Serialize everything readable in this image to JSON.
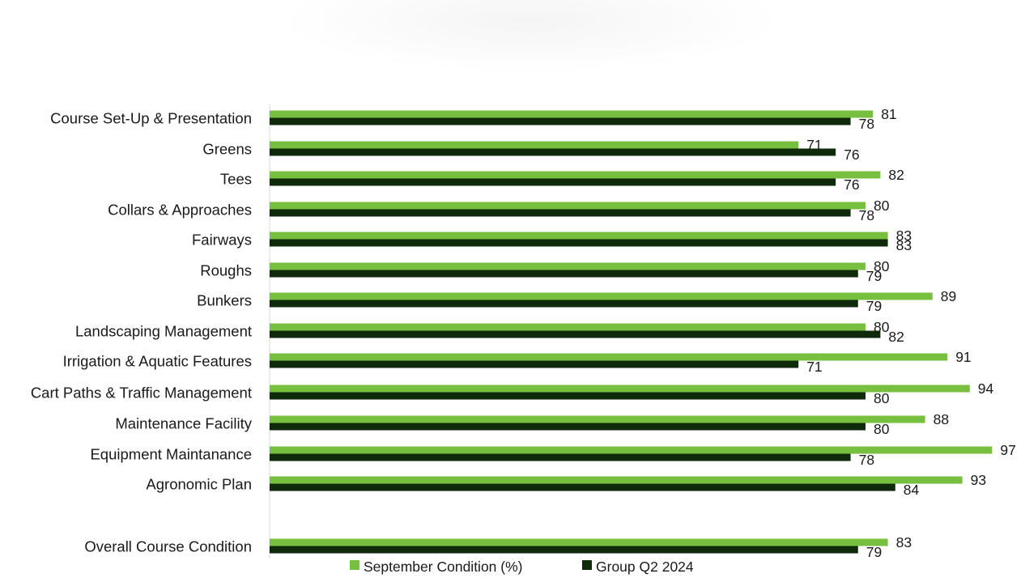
{
  "chart_data": {
    "type": "bar",
    "orientation": "horizontal",
    "categories": [
      "Course Set-Up & Presentation",
      "Greens",
      "Tees",
      "Collars & Approaches",
      "Fairways",
      "Roughs",
      "Bunkers",
      "Landscaping Management",
      "Irrigation & Aquatic Features",
      "Cart Paths & Traffic Management",
      "Maintenance Facility",
      "Equipment Maintanance",
      "Agronomic Plan",
      "Overall Course Condition"
    ],
    "series": [
      {
        "name": "September Condition (%)",
        "color": "#76bf3f",
        "values": [
          81,
          71,
          82,
          80,
          83,
          80,
          89,
          80,
          91,
          94,
          88,
          97,
          93,
          83
        ]
      },
      {
        "name": "Group Q2 2024",
        "color": "#0f2a0b",
        "values": [
          78,
          76,
          76,
          78,
          83,
          79,
          79,
          82,
          71,
          80,
          80,
          78,
          84,
          79
        ]
      }
    ],
    "xlim": [
      0,
      100
    ],
    "grid": false,
    "legend_position": "bottom",
    "title": "",
    "xlabel": "",
    "ylabel": ""
  }
}
